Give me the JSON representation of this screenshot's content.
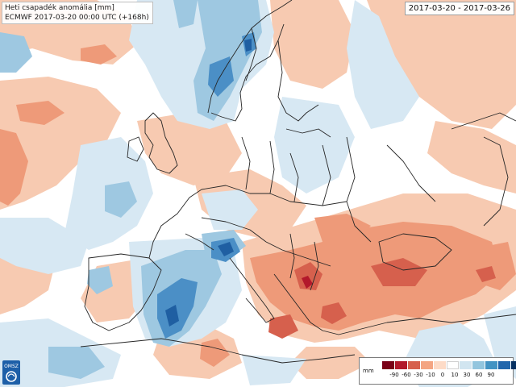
{
  "header": {
    "title": "Heti csapadék anomália [mm]",
    "subtitle": "ECMWF 2017-03-20 00:00 UTC (+168h)",
    "date_range": "2017-03-20 - 2017-03-26"
  },
  "logo": {
    "text": "OMSZ",
    "icon": "omsz-logo-icon"
  },
  "legend": {
    "unit": "mm",
    "ticks": [
      "-90",
      "-60",
      "-30",
      "-10",
      "0",
      "10",
      "30",
      "60",
      "90"
    ],
    "colors": [
      "#7a0016",
      "#b2182b",
      "#d6604d",
      "#f4a582",
      "#fddbc7",
      "#ffffff",
      "#d1e5f0",
      "#92c5de",
      "#4393c3",
      "#2166ac",
      "#053061"
    ]
  },
  "colors": {
    "sea_dry": "#f7cab1",
    "dry_medium": "#ee9a79",
    "dry_strong": "#d6604d",
    "wet_light": "#d7e8f3",
    "wet_medium": "#9ec8e1",
    "wet_strong": "#4b8fc6",
    "wet_very_strong": "#1f5fa2",
    "borders": "#262626"
  }
}
